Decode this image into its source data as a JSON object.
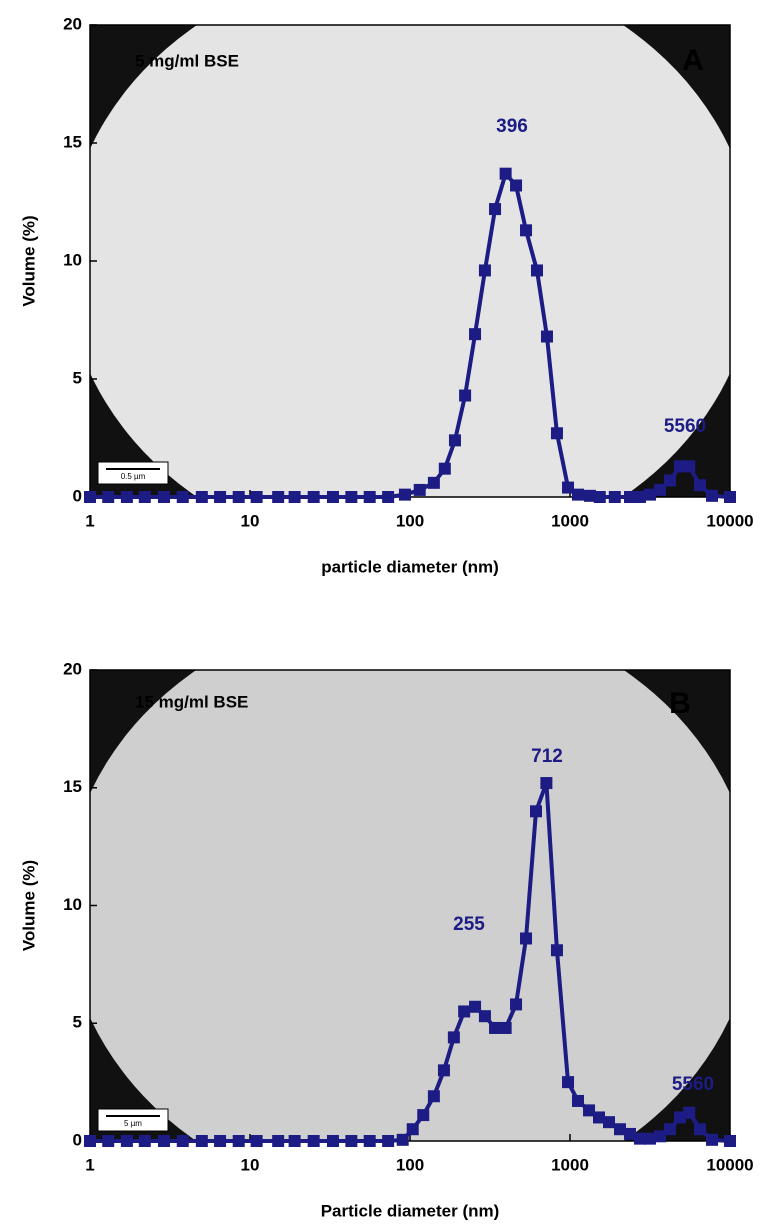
{
  "chart_data": [
    {
      "type": "line",
      "xscale": "log",
      "sample": "5 mg/ml BSE",
      "panel": "A",
      "annotations": [
        "396",
        "5560"
      ],
      "scale_bar": "0.5 µm",
      "xlabel": "particle diameter (nm)",
      "ylabel": "Volume (%)",
      "xlim": [
        1,
        10000
      ],
      "xticks": [
        1,
        10,
        100,
        1000,
        10000
      ],
      "ylim": [
        0,
        20
      ],
      "yticks": [
        0,
        5,
        10,
        15,
        20
      ],
      "color": "#1c1c84",
      "marker": "square",
      "x": [
        1,
        1.3,
        1.7,
        2.2,
        2.9,
        3.8,
        5,
        6.5,
        8.5,
        11,
        15,
        19,
        25,
        33,
        43,
        56,
        73,
        93,
        115,
        141,
        165,
        191,
        221,
        255,
        294,
        340,
        396,
        460,
        531,
        622,
        718,
        829,
        972,
        1122,
        1333,
        1535,
        1905,
        2371,
        2738,
        3162,
        3652,
        4217,
        4870,
        5560,
        6494,
        7720,
        10000
      ],
      "values": [
        0,
        0,
        0,
        0,
        0,
        0,
        0,
        0,
        0,
        0,
        0,
        0,
        0,
        0,
        0,
        0,
        0,
        0.1,
        0.3,
        0.6,
        1.2,
        2.4,
        4.3,
        6.9,
        9.6,
        12.2,
        13.7,
        13.2,
        11.3,
        9.6,
        6.8,
        2.7,
        0.4,
        0.1,
        0.05,
        0,
        0,
        0,
        0,
        0.1,
        0.3,
        0.7,
        1.3,
        1.3,
        0.5,
        0.05,
        0
      ]
    },
    {
      "type": "line",
      "xscale": "log",
      "sample": "15 mg/ml BSE",
      "panel": "B",
      "annotations": [
        "712",
        "255",
        "5560"
      ],
      "scale_bar": "5 µm",
      "xlabel": "Particle diameter (nm)",
      "ylabel": "Volume (%)",
      "xlim": [
        1,
        10000
      ],
      "xticks": [
        1,
        10,
        100,
        1000,
        10000
      ],
      "ylim": [
        0,
        20
      ],
      "yticks": [
        0,
        5,
        10,
        15,
        20
      ],
      "color": "#1c1c84",
      "marker": "square",
      "x": [
        1,
        1.3,
        1.7,
        2.2,
        2.9,
        3.8,
        5,
        6.5,
        8.5,
        11,
        15,
        19,
        25,
        33,
        43,
        56,
        73,
        90,
        104,
        121,
        141,
        163,
        188,
        218,
        255,
        294,
        340,
        396,
        460,
        531,
        613,
        712,
        829,
        972,
        1122,
        1315,
        1518,
        1753,
        2054,
        2371,
        2738,
        3162,
        3652,
        4217,
        4870,
        5560,
        6494,
        7720,
        10000
      ],
      "values": [
        0,
        0,
        0,
        0,
        0,
        0,
        0,
        0,
        0,
        0,
        0,
        0,
        0,
        0,
        0,
        0,
        0,
        0.05,
        0.5,
        1.1,
        1.9,
        3.0,
        4.4,
        5.5,
        5.7,
        5.3,
        4.8,
        4.8,
        5.8,
        8.6,
        14.0,
        15.2,
        8.1,
        2.5,
        1.7,
        1.3,
        1.0,
        0.8,
        0.5,
        0.3,
        0.1,
        0.1,
        0.2,
        0.5,
        1.0,
        1.2,
        0.5,
        0.05,
        0
      ]
    }
  ]
}
